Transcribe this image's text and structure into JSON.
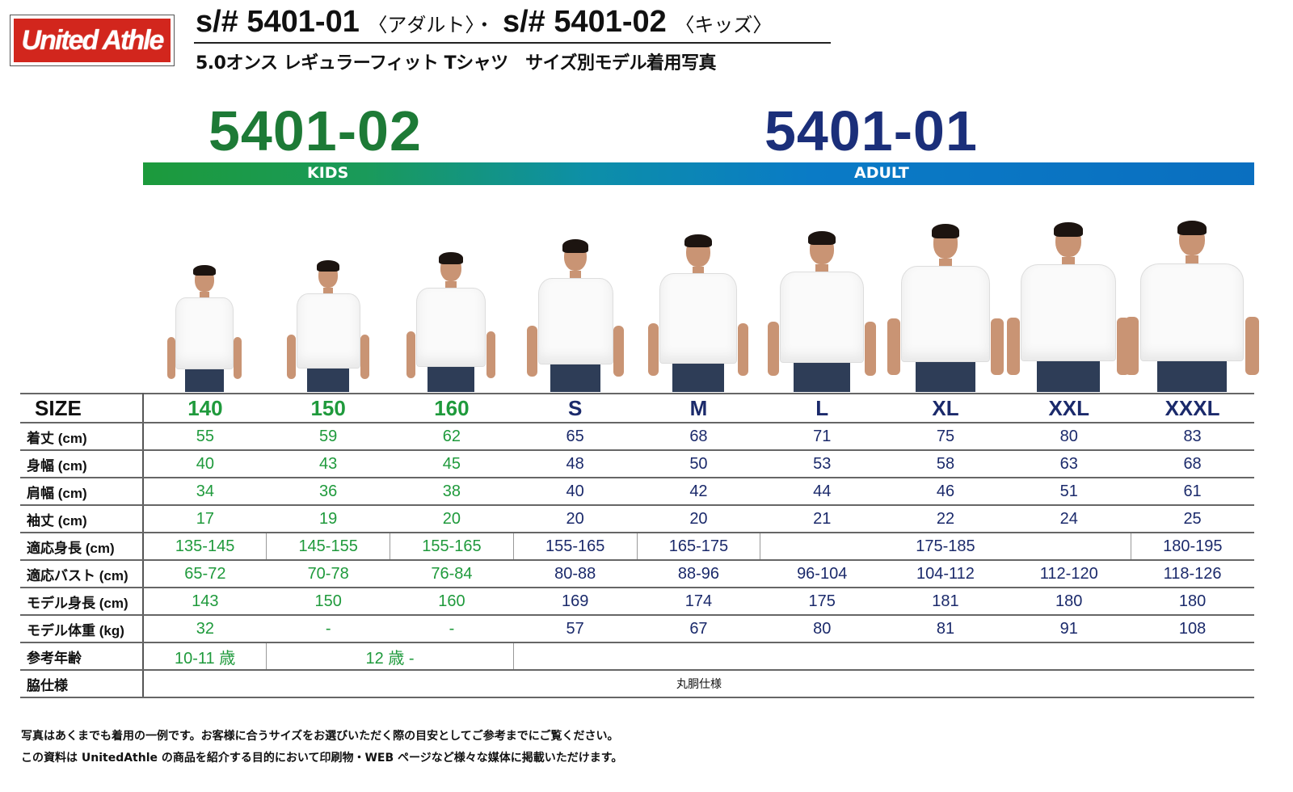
{
  "header": {
    "logo_text": "United Athle",
    "title_main_adult": "s/# 5401-01",
    "title_adult_tag": "〈アダルト〉・",
    "title_main_kids": "s/# 5401-02",
    "title_kids_tag": "〈キッズ〉",
    "subtitle": "5.0オンス レギュラーフィット Tシャツ　サイズ別モデル着用写真"
  },
  "sections": {
    "kids_code": "5401-02",
    "kids_label": "KIDS",
    "adult_code": "5401-01",
    "adult_label": "ADULT"
  },
  "colors": {
    "kids": "#1f9a3c",
    "adult": "#1b2a6b",
    "logo": "#d2261d"
  },
  "table": {
    "size_label": "SIZE",
    "kids_columns": 3,
    "sizes": [
      "140",
      "150",
      "160",
      "S",
      "M",
      "L",
      "XL",
      "XXL",
      "XXXL"
    ],
    "rows": [
      {
        "label": "着丈 (cm)",
        "cells": [
          {
            "t": "55"
          },
          {
            "t": "59"
          },
          {
            "t": "62"
          },
          {
            "t": "65"
          },
          {
            "t": "68"
          },
          {
            "t": "71"
          },
          {
            "t": "75"
          },
          {
            "t": "80"
          },
          {
            "t": "83"
          }
        ]
      },
      {
        "label": "身幅 (cm)",
        "cells": [
          {
            "t": "40"
          },
          {
            "t": "43"
          },
          {
            "t": "45"
          },
          {
            "t": "48"
          },
          {
            "t": "50"
          },
          {
            "t": "53"
          },
          {
            "t": "58"
          },
          {
            "t": "63"
          },
          {
            "t": "68"
          }
        ]
      },
      {
        "label": "肩幅 (cm)",
        "cells": [
          {
            "t": "34"
          },
          {
            "t": "36"
          },
          {
            "t": "38"
          },
          {
            "t": "40"
          },
          {
            "t": "42"
          },
          {
            "t": "44"
          },
          {
            "t": "46"
          },
          {
            "t": "51"
          },
          {
            "t": "61"
          }
        ]
      },
      {
        "label": "袖丈 (cm)",
        "cells": [
          {
            "t": "17"
          },
          {
            "t": "19"
          },
          {
            "t": "20"
          },
          {
            "t": "20"
          },
          {
            "t": "20"
          },
          {
            "t": "21"
          },
          {
            "t": "22"
          },
          {
            "t": "24"
          },
          {
            "t": "25"
          }
        ]
      },
      {
        "label": "適応身長 (cm)",
        "cells": [
          {
            "t": "135-145"
          },
          {
            "t": "145-155"
          },
          {
            "t": "155-165"
          },
          {
            "t": "155-165"
          },
          {
            "t": "165-175"
          },
          {
            "t": "175-185",
            "span": 3
          },
          {
            "t": "180-195"
          }
        ]
      },
      {
        "label": "適応バスト (cm)",
        "cells": [
          {
            "t": "65-72"
          },
          {
            "t": "70-78"
          },
          {
            "t": "76-84"
          },
          {
            "t": "80-88"
          },
          {
            "t": "88-96"
          },
          {
            "t": "96-104"
          },
          {
            "t": "104-112"
          },
          {
            "t": "112-120"
          },
          {
            "t": "118-126"
          }
        ]
      },
      {
        "label": "モデル身長 (cm)",
        "cells": [
          {
            "t": "143"
          },
          {
            "t": "150"
          },
          {
            "t": "160"
          },
          {
            "t": "169"
          },
          {
            "t": "174"
          },
          {
            "t": "175"
          },
          {
            "t": "181"
          },
          {
            "t": "180"
          },
          {
            "t": "180"
          }
        ]
      },
      {
        "label": "モデル体重 (kg)",
        "cells": [
          {
            "t": "32"
          },
          {
            "t": "-"
          },
          {
            "t": "-"
          },
          {
            "t": "57"
          },
          {
            "t": "67"
          },
          {
            "t": "80"
          },
          {
            "t": "81"
          },
          {
            "t": "91"
          },
          {
            "t": "108"
          }
        ]
      },
      {
        "label": "参考年齢",
        "cells": [
          {
            "t": "10-11 歳"
          },
          {
            "t": "12 歳 -",
            "span": 2
          },
          {
            "t": "",
            "span": 6
          }
        ]
      },
      {
        "label": "脇仕様",
        "plain": true,
        "cells": [
          {
            "t": "丸胴仕様",
            "span": 9
          }
        ]
      }
    ]
  },
  "notes": [
    "写真はあくまでも着用の一例です。お客様に合うサイズをお選びいただく際の目安としてご参考までにご覧ください。",
    "この資料は UnitedAthle の商品を紹介する目的において印刷物・WEB ページなど様々な媒体に掲載いただけます。"
  ]
}
